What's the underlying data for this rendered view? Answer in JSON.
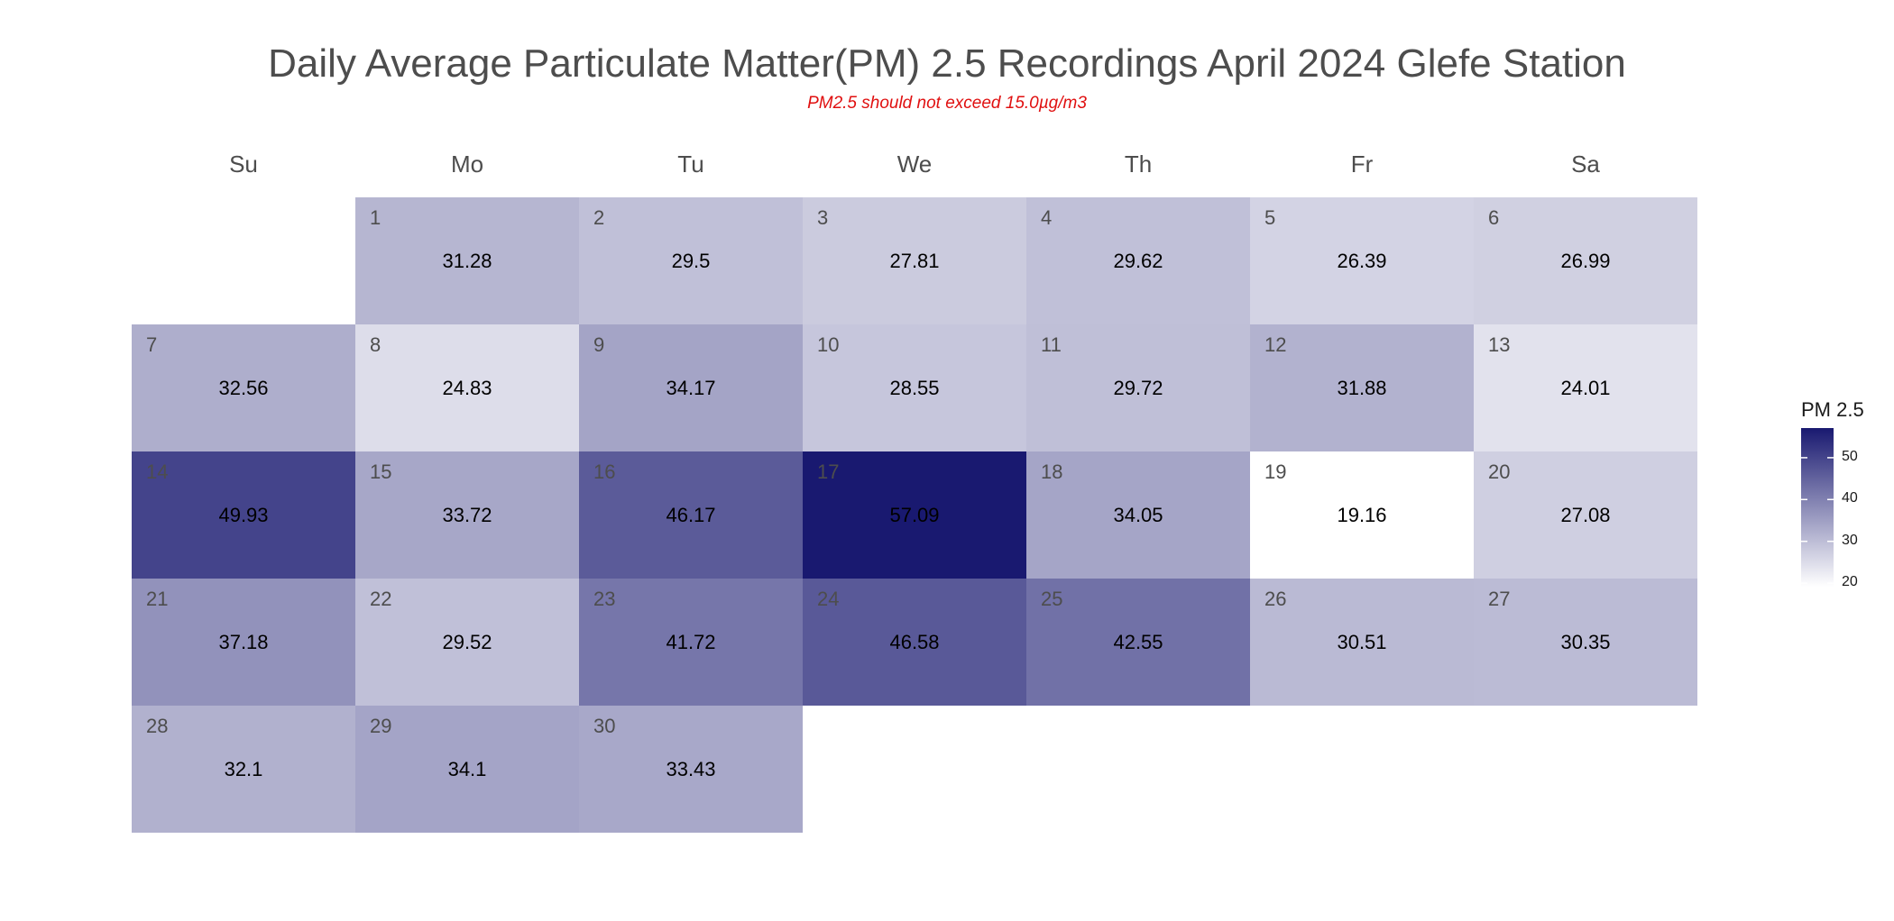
{
  "chart_data": {
    "type": "heatmap",
    "title": "Daily Average Particulate Matter(PM) 2.5 Recordings April 2024 Glefe Station",
    "subtitle": "PM2.5 should not exceed 15.0µg/m3",
    "weekdays": [
      "Su",
      "Mo",
      "Tu",
      "We",
      "Th",
      "Fr",
      "Sa"
    ],
    "first_weekday_index": 1,
    "days": [
      1,
      2,
      3,
      4,
      5,
      6,
      7,
      8,
      9,
      10,
      11,
      12,
      13,
      14,
      15,
      16,
      17,
      18,
      19,
      20,
      21,
      22,
      23,
      24,
      25,
      26,
      27,
      28,
      29,
      30
    ],
    "values": [
      "31.28",
      "29.5",
      "27.81",
      "29.62",
      "26.39",
      "26.99",
      "32.56",
      "24.83",
      "34.17",
      "28.55",
      "29.72",
      "31.88",
      "24.01",
      "49.93",
      "33.72",
      "46.17",
      "57.09",
      "34.05",
      "19.16",
      "27.08",
      "37.18",
      "29.52",
      "41.72",
      "46.58",
      "42.55",
      "30.51",
      "30.35",
      "32.1",
      "34.1",
      "33.43"
    ],
    "legend": {
      "title": "PM 2.5",
      "ticks": [
        "20",
        "30",
        "40",
        "50"
      ],
      "range": [
        19.16,
        57.09
      ],
      "color_low": "#ffffff",
      "color_high": "#191970"
    }
  }
}
